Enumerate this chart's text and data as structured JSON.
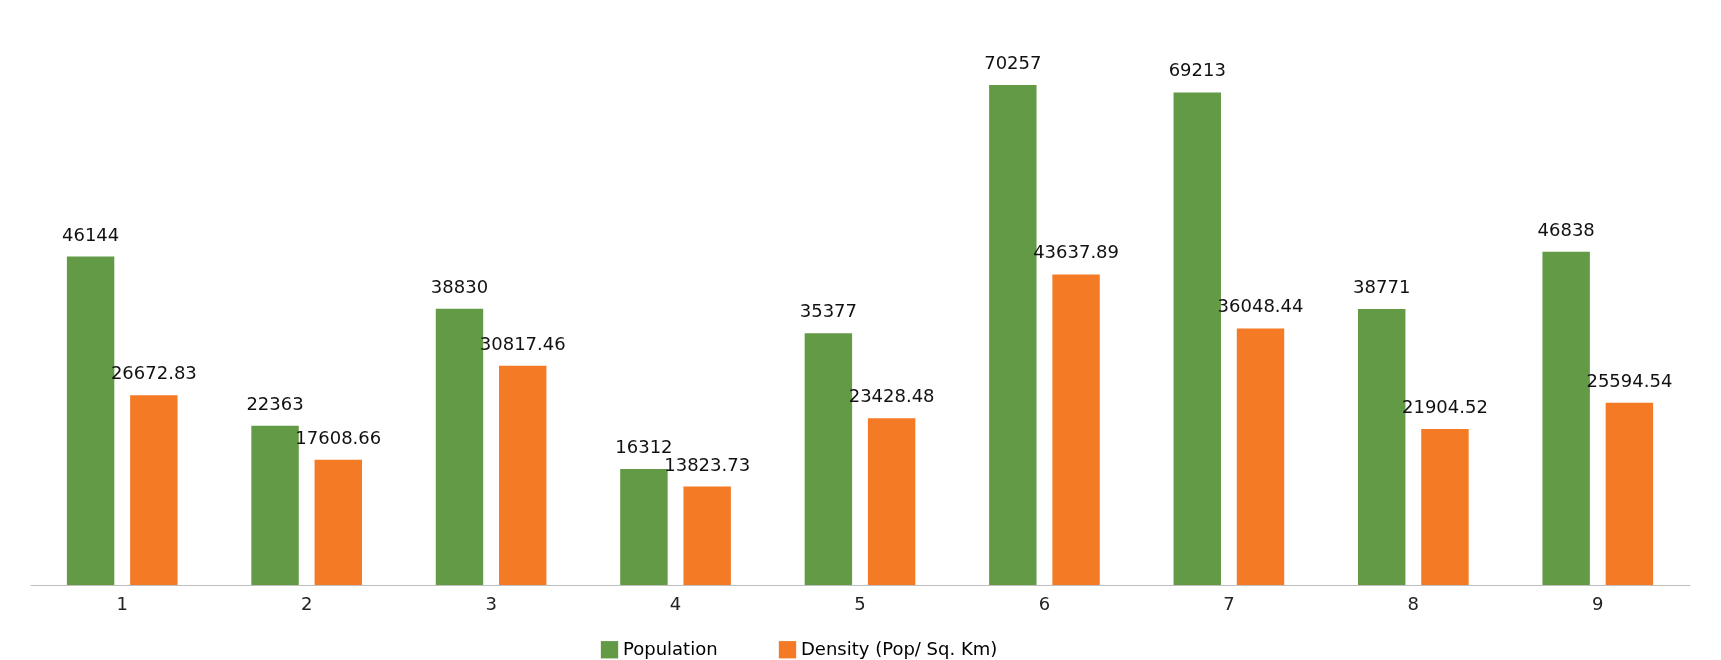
{
  "chart_data": {
    "type": "bar",
    "categories": [
      "1",
      "2",
      "3",
      "4",
      "5",
      "6",
      "7",
      "8",
      "9"
    ],
    "series": [
      {
        "name": "Population",
        "color": "#629a46",
        "values": [
          46144,
          22363,
          38830,
          16312,
          35377,
          70257,
          69213,
          38771,
          46838
        ]
      },
      {
        "name": "Density (Pop/ Sq. Km)",
        "color": "#f47a25",
        "values": [
          26672.83,
          17608.66,
          30817.46,
          13823.73,
          23428.48,
          43637.89,
          36048.44,
          21904.52,
          25594.54
        ]
      }
    ],
    "data_labels": true,
    "grid": false,
    "legend": "bottom"
  }
}
